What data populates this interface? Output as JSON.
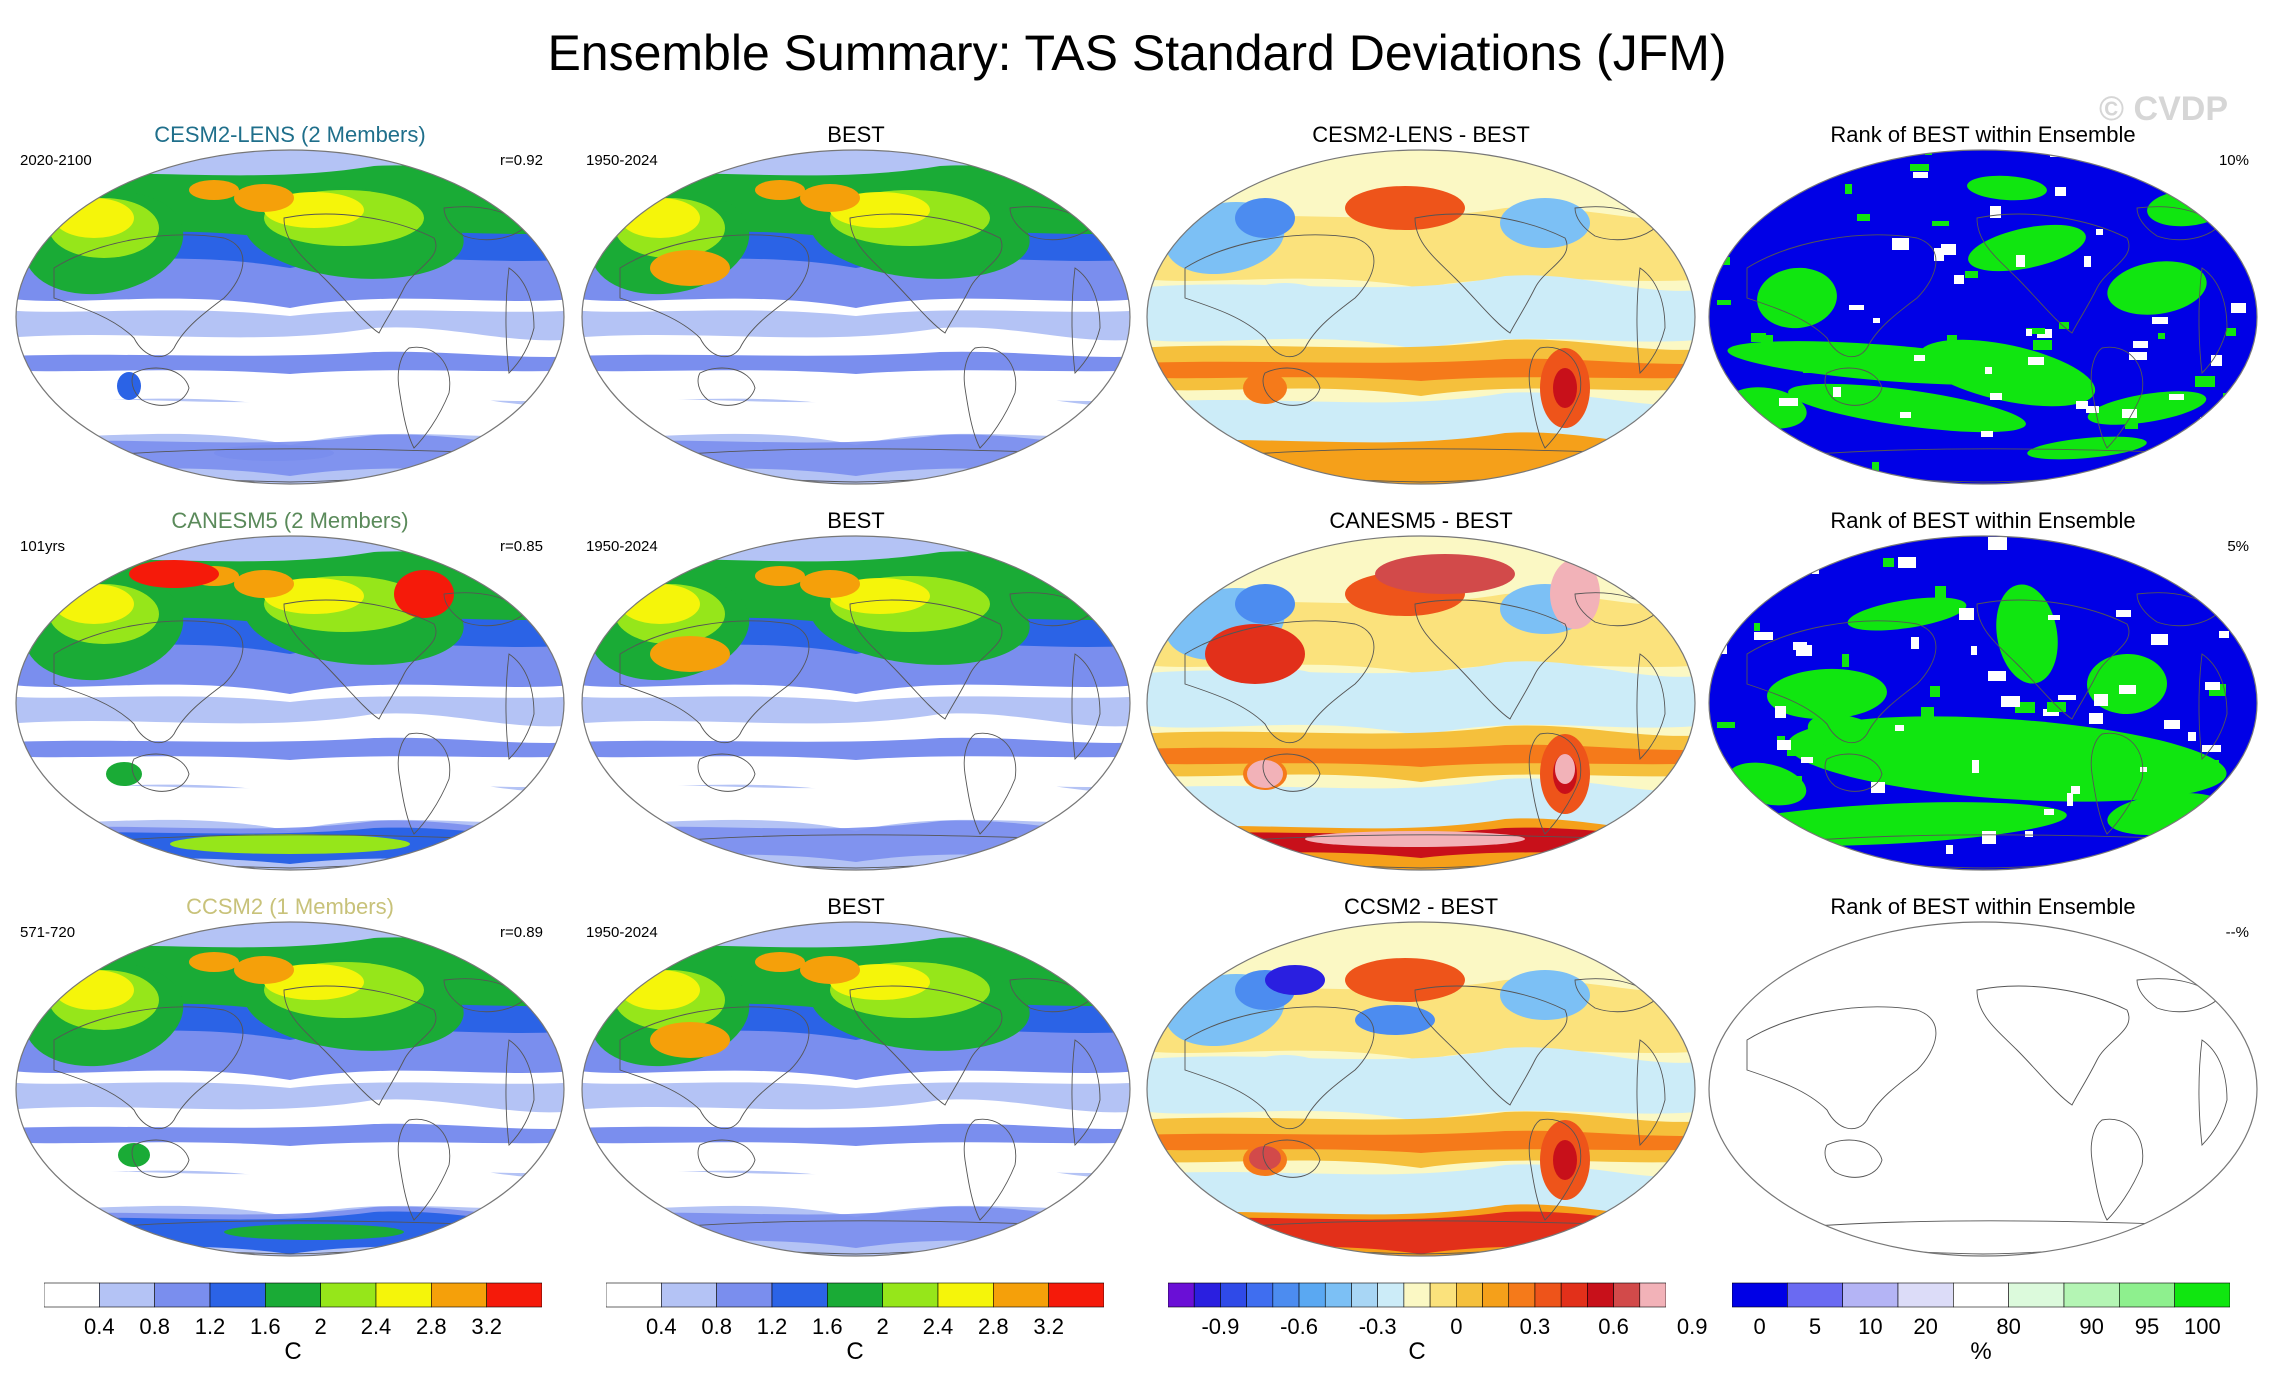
{
  "title": "Ensemble Summary: TAS Standard Deviations (JFM)",
  "watermark": "© CVDP",
  "rows": [
    {
      "model": {
        "title": "CESM2-LENS (2 Members)",
        "title_color": "#1f6f8b",
        "period": "2020-2100",
        "corr": "r=0.92"
      },
      "obs": {
        "title": "BEST",
        "period": "1950-2024"
      },
      "diff": {
        "title": "CESM2-LENS - BEST"
      },
      "rank": {
        "title": "Rank of BEST within Ensemble",
        "pct": "10%"
      }
    },
    {
      "model": {
        "title": "CANESM5 (2 Members)",
        "title_color": "#5a8a5a",
        "period": "101yrs",
        "corr": "r=0.85"
      },
      "obs": {
        "title": "BEST",
        "period": "1950-2024"
      },
      "diff": {
        "title": "CANESM5 - BEST"
      },
      "rank": {
        "title": "Rank of BEST within Ensemble",
        "pct": "5%"
      }
    },
    {
      "model": {
        "title": "CCSM2 (1 Members)",
        "title_color": "#c8c27a",
        "period": "571-720",
        "corr": "r=0.89"
      },
      "obs": {
        "title": "BEST",
        "period": "1950-2024"
      },
      "diff": {
        "title": "CCSM2 - BEST"
      },
      "rank": {
        "title": "Rank of BEST within Ensemble",
        "pct": "--%"
      }
    }
  ],
  "chart_data": {
    "type": "heatmap",
    "projection": "Robinson (Pacific-centered)",
    "colorbars": [
      {
        "name": "sd",
        "unit": "C",
        "colors": [
          "#ffffff",
          "#b4c3f5",
          "#7a8eee",
          "#2b63e6",
          "#1aab36",
          "#96e61a",
          "#f5f50a",
          "#f5a00a",
          "#f51a0a"
        ],
        "tick_labels": [
          "0.4",
          "0.8",
          "1.2",
          "1.6",
          "2",
          "2.4",
          "2.8",
          "3.2"
        ]
      },
      {
        "name": "sd_obs",
        "unit": "C",
        "colors": [
          "#ffffff",
          "#b4c3f5",
          "#7a8eee",
          "#2b63e6",
          "#1aab36",
          "#96e61a",
          "#f5f50a",
          "#f5a00a",
          "#f51a0a"
        ],
        "tick_labels": [
          "0.4",
          "0.8",
          "1.2",
          "1.6",
          "2",
          "2.4",
          "2.8",
          "3.2"
        ]
      },
      {
        "name": "diff",
        "unit": "C",
        "colors": [
          "#6a0fd6",
          "#2a1fe0",
          "#2f4ae8",
          "#3f6ef0",
          "#4c8cf0",
          "#5aa8f2",
          "#7cc0f5",
          "#a8d6f5",
          "#ccecf8",
          "#fbf8c4",
          "#fbe27c",
          "#f5c03c",
          "#f5a01a",
          "#f57a1a",
          "#ee541a",
          "#e2301a",
          "#c8101a",
          "#d24a4a",
          "#f2b2b8"
        ],
        "tick_labels": [
          "-0.9",
          "-0.6",
          "-0.3",
          "0",
          "0.3",
          "0.6",
          "0.9"
        ]
      },
      {
        "name": "rank",
        "unit": "%",
        "colors": [
          "#0000e6",
          "#6a6af2",
          "#b4b4f5",
          "#dcdcf8",
          "#ffffff",
          "#dcfadc",
          "#b4f5b4",
          "#8ef08e",
          "#10e610"
        ],
        "tick_labels": [
          "0",
          "5",
          "10",
          "20",
          "80",
          "90",
          "95",
          "100"
        ]
      }
    ],
    "panels_note": "12 global maps: model TAS std dev, BEST TAS std dev, model minus BEST difference, rank of BEST within ensemble for 3 model rows"
  }
}
